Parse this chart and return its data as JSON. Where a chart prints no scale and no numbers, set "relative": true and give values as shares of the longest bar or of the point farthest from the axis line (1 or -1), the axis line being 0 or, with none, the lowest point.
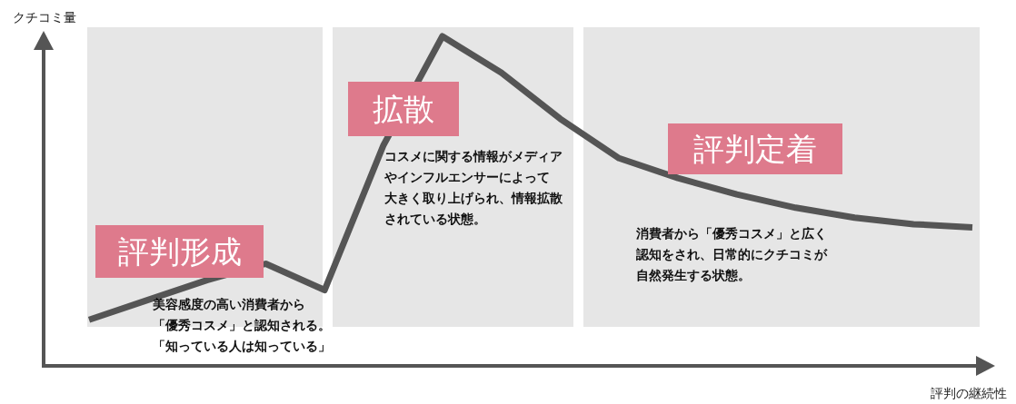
{
  "chart_data": {
    "type": "line",
    "relative": true,
    "ylabel": "クチコミ量",
    "xlabel": "評判の継続性",
    "categories": [
      null,
      null,
      null,
      null,
      null,
      null,
      null,
      null,
      null,
      null,
      null,
      null,
      null,
      null,
      null,
      null
    ],
    "series": [
      {
        "color": "#555555",
        "values": [
          0.14,
          0.2,
          0.26,
          0.31,
          0.23,
          0.67,
          1,
          0.89,
          0.75,
          0.63,
          0.57,
          0.52,
          0.48,
          0.45,
          0.43,
          0.42
        ]
      }
    ],
    "annotations": [
      "評判形成",
      "美容感度の高い消費者から",
      "「優秀コスメ」と認知される。",
      "「知っている人は知っている」",
      "拡散",
      "コスメに関する情報がメディア",
      "やインフルエンサーによって",
      "大きく取り上げられ、情報拡散",
      "されている状態。",
      "評判定着",
      "消費者から「優秀コスメ」と広く",
      "認知をされ、日常的にクチコミが",
      "自然発生する状態。"
    ],
    "grid": false,
    "marker": "none",
    "line_style": "solid"
  }
}
